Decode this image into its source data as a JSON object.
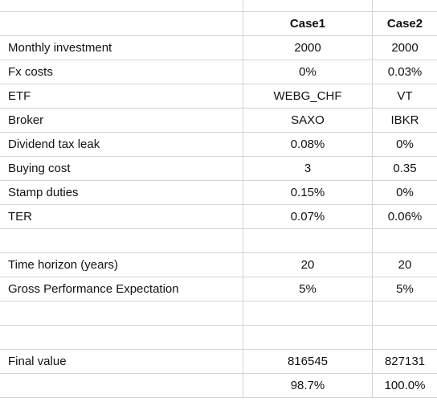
{
  "table": {
    "rows": [
      [
        null,
        "Case1",
        "Case2"
      ],
      [
        "Monthly investment",
        "2000",
        "2000"
      ],
      [
        "Fx costs",
        "0%",
        "0.03%"
      ],
      [
        "ETF",
        "WEBG_CHF",
        "VT"
      ],
      [
        "Broker",
        "SAXO",
        "IBKR"
      ],
      [
        "Dividend tax leak",
        "0.08%",
        "0%"
      ],
      [
        "Buying cost",
        "3",
        "0.35"
      ],
      [
        "Stamp duties",
        "0.15%",
        "0%"
      ],
      [
        "TER",
        "0.07%",
        "0.06%"
      ],
      [
        null,
        null,
        null
      ],
      [
        "Time horizon (years)",
        "20",
        "20"
      ],
      [
        "Gross Performance Expectation",
        "5%",
        "5%"
      ],
      [
        null,
        null,
        null
      ],
      [
        null,
        null,
        null
      ],
      [
        "Final value",
        "816545",
        "827131"
      ],
      [
        null,
        "98.7%",
        "100.0%"
      ]
    ]
  }
}
